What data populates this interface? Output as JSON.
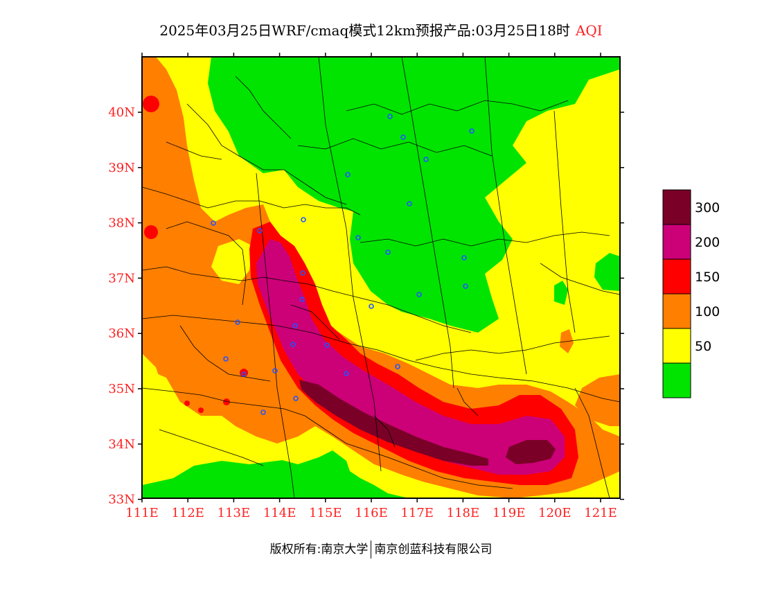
{
  "title": {
    "main": "2025年03月25日WRF/cmaq模式12km预报产品:03月25日18时",
    "variable": "AQI"
  },
  "x_ticks": [
    "111E",
    "112E",
    "113E",
    "114E",
    "115E",
    "116E",
    "117E",
    "118E",
    "119E",
    "120E",
    "121E"
  ],
  "y_ticks": [
    "40N",
    "39N",
    "38N",
    "37N",
    "36N",
    "35N",
    "34N",
    "33N"
  ],
  "legend": {
    "labels": [
      "300",
      "200",
      "150",
      "100",
      "50"
    ],
    "colors": [
      "#7a0027",
      "#cc0077",
      "#ff0000",
      "#ff7f00",
      "#ffff00",
      "#00e400"
    ]
  },
  "footer": {
    "left": "版权所有:南京大学",
    "right": "南京创蓝科技有限公司"
  },
  "colors": {
    "good": "#00e400",
    "moderate": "#ffff00",
    "usg": "#ff7f00",
    "unhealthy": "#ff0000",
    "very_unhealthy": "#cc0077",
    "hazardous": "#7a0027",
    "axis_text": "#ff2020",
    "station_marker": "#2255ff"
  }
}
